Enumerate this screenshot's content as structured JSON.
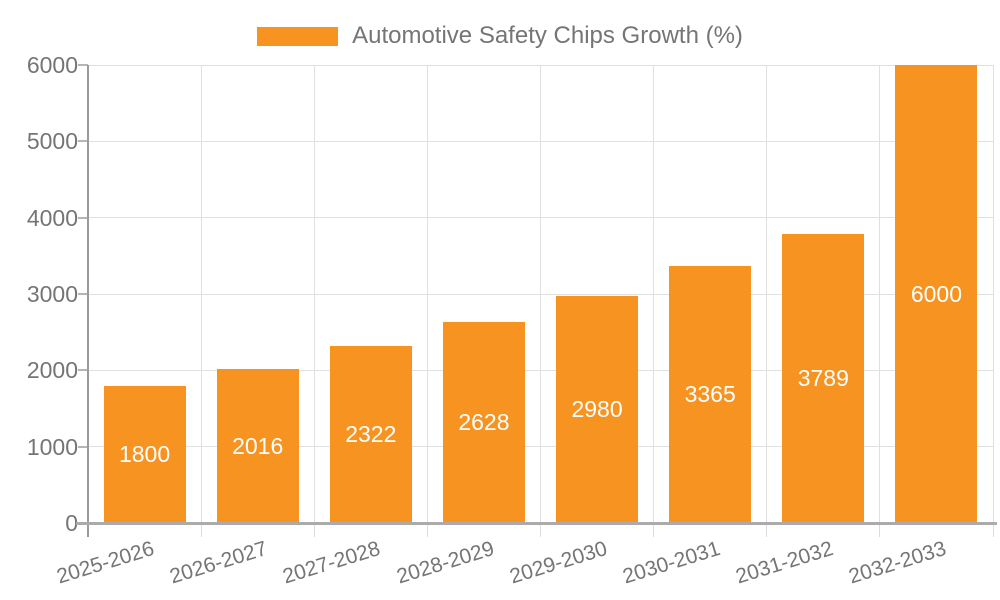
{
  "chart_data": {
    "type": "bar",
    "title": "Automotive Safety Chips Growth (%)",
    "legend_label": "Automotive Safety Chips Growth (%)",
    "legend_position": "top",
    "categories": [
      "2025-2026",
      "2026-2027",
      "2027-2028",
      "2028-2029",
      "2029-2030",
      "2030-2031",
      "2031-2032",
      "2032-2033"
    ],
    "values": [
      1800,
      2016,
      2322,
      2628,
      2980,
      3365,
      3789,
      6000
    ],
    "xlabel": "",
    "ylabel": "",
    "ylim": [
      0,
      6000
    ],
    "yticks": [
      0,
      1000,
      2000,
      3000,
      4000,
      5000,
      6000
    ],
    "grid": true,
    "x_label_rotation_deg": -17,
    "bar_color": "#F79421",
    "value_label_color": "#FFFFFF",
    "axis_text_color": "#757575",
    "grid_color": "#E0E0E0"
  }
}
